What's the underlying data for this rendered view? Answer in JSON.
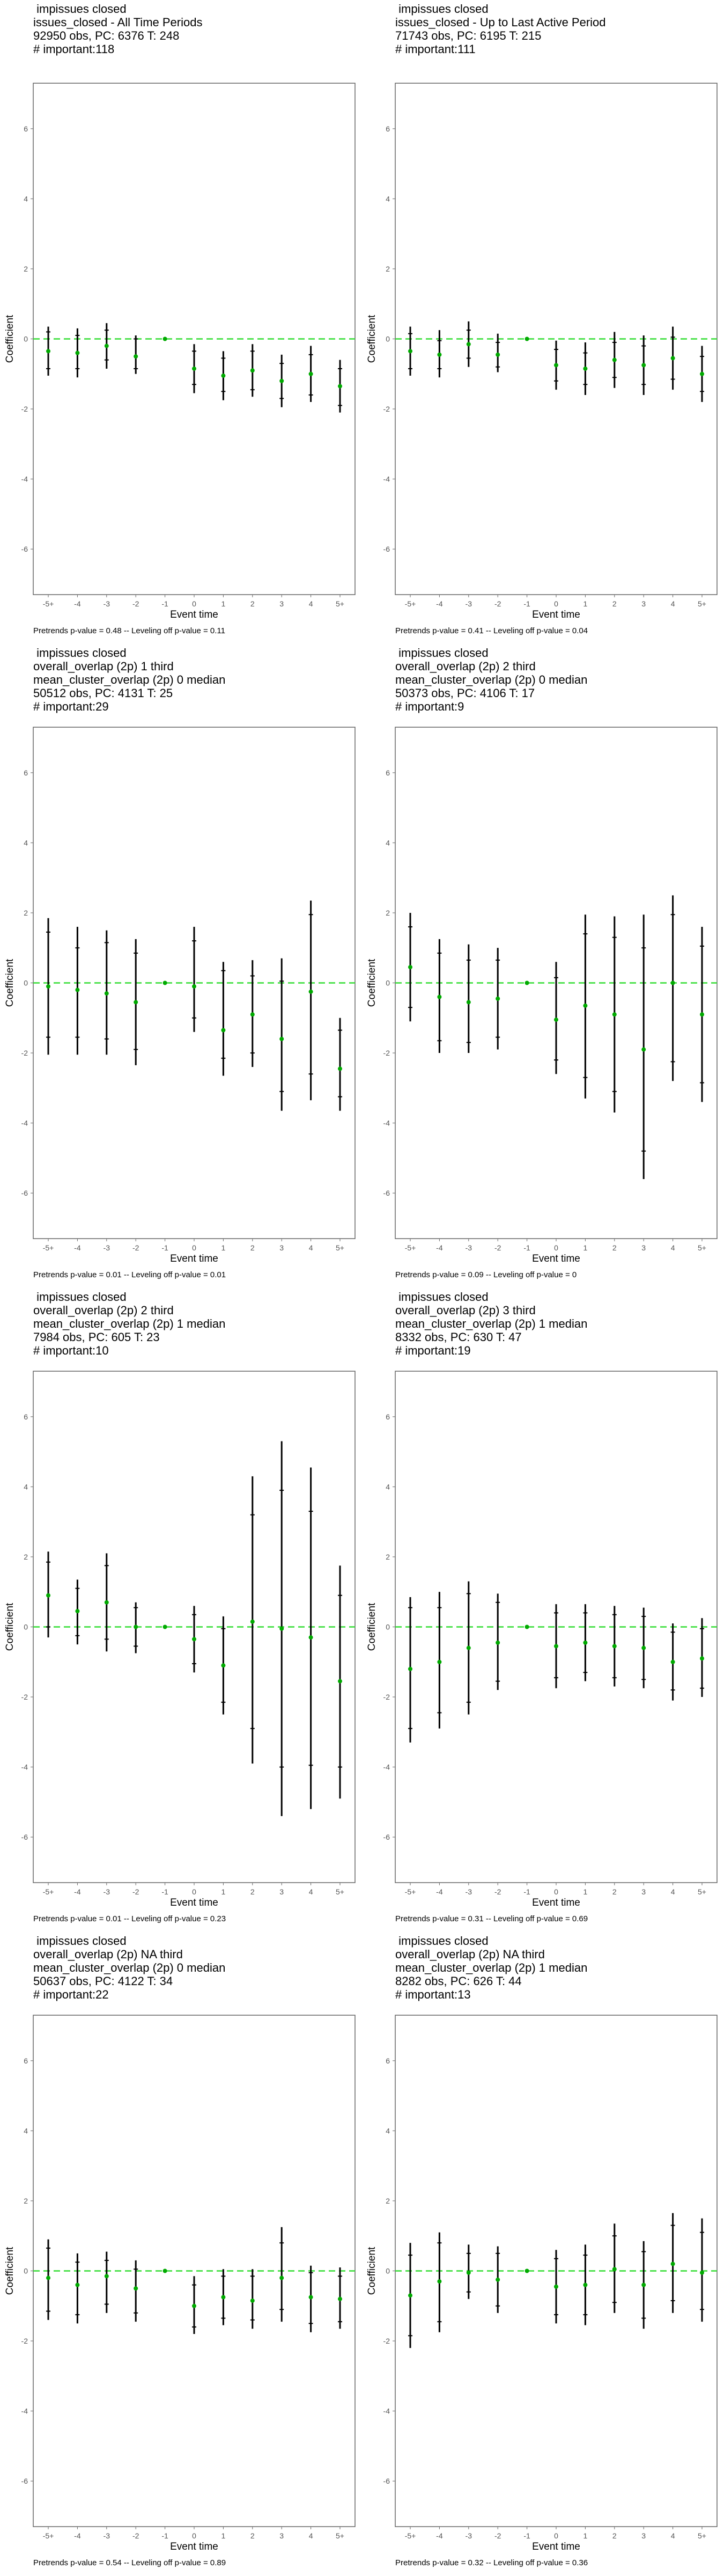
{
  "chart_data": [
    {
      "type": "scatter",
      "title_lines": [
        "impissues closed",
        "issues_closed - All Time Periods",
        "92950 obs, PC: 6376 T: 248",
        "# important:118"
      ],
      "xlabel": "Event time",
      "ylabel": "Coefficient",
      "x_ticks": [
        "-5+",
        "-4",
        "-3",
        "-2",
        "-1",
        "0",
        "1",
        "2",
        "3",
        "4",
        "5+"
      ],
      "y_ticks": [
        "-6",
        "-4",
        "-2",
        "0",
        "2",
        "4",
        "6"
      ],
      "ylim": [
        -7.3,
        7.3
      ],
      "reference_line": 0,
      "series": [
        {
          "estimate": [
            -0.35,
            -0.4,
            -0.2,
            -0.5,
            0,
            -0.85,
            -1.05,
            -0.9,
            -1.2,
            -1.0,
            -1.35
          ],
          "ci_outer_low": [
            -1.05,
            -1.1,
            -0.85,
            -1.0,
            0,
            -1.55,
            -1.75,
            -1.65,
            -1.95,
            -1.8,
            -2.1
          ],
          "ci_outer_high": [
            0.35,
            0.3,
            0.45,
            0.1,
            0,
            -0.15,
            -0.35,
            -0.15,
            -0.45,
            -0.2,
            -0.6
          ],
          "ci_inner_low": [
            -0.85,
            -0.85,
            -0.6,
            -0.85,
            0,
            -1.3,
            -1.5,
            -1.45,
            -1.7,
            -1.6,
            -1.9
          ],
          "ci_inner_high": [
            0.2,
            0.1,
            0.25,
            0.0,
            0,
            -0.35,
            -0.55,
            -0.35,
            -0.7,
            -0.45,
            -0.85
          ]
        }
      ],
      "caption": "Pretrends p-value = 0.48 -- Leveling off p-value = 0.11"
    },
    {
      "type": "scatter",
      "title_lines": [
        "impissues closed",
        "issues_closed - Up to Last Active Period",
        "71743 obs, PC: 6195 T: 215",
        "# important:111"
      ],
      "xlabel": "Event time",
      "ylabel": "Coefficient",
      "x_ticks": [
        "-5+",
        "-4",
        "-3",
        "-2",
        "-1",
        "0",
        "1",
        "2",
        "3",
        "4",
        "5+"
      ],
      "y_ticks": [
        "-6",
        "-4",
        "-2",
        "0",
        "2",
        "4",
        "6"
      ],
      "ylim": [
        -7.3,
        7.3
      ],
      "reference_line": 0,
      "series": [
        {
          "estimate": [
            -0.35,
            -0.45,
            -0.15,
            -0.45,
            0,
            -0.75,
            -0.85,
            -0.6,
            -0.75,
            -0.55,
            -1.0
          ],
          "ci_outer_low": [
            -1.05,
            -1.1,
            -0.8,
            -0.95,
            0,
            -1.45,
            -1.6,
            -1.4,
            -1.6,
            -1.45,
            -1.8
          ],
          "ci_outer_high": [
            0.35,
            0.25,
            0.5,
            0.15,
            0,
            -0.05,
            -0.1,
            0.2,
            0.1,
            0.35,
            -0.2
          ],
          "ci_inner_low": [
            -0.85,
            -0.85,
            -0.55,
            -0.8,
            0,
            -1.2,
            -1.3,
            -1.1,
            -1.3,
            -1.15,
            -1.5
          ],
          "ci_inner_high": [
            0.15,
            -0.05,
            0.25,
            -0.1,
            0,
            -0.3,
            -0.4,
            -0.1,
            -0.2,
            0.05,
            -0.5
          ]
        }
      ],
      "caption": "Pretrends p-value = 0.41 -- Leveling off p-value = 0.04"
    },
    {
      "type": "scatter",
      "title_lines": [
        "impissues closed",
        "overall_overlap (2p) 1 third",
        "mean_cluster_overlap (2p) 0 median",
        "50512 obs, PC: 4131 T: 25",
        "# important:29"
      ],
      "xlabel": "Event time",
      "ylabel": "Coefficient",
      "x_ticks": [
        "-5+",
        "-4",
        "-3",
        "-2",
        "-1",
        "0",
        "1",
        "2",
        "3",
        "4",
        "5+"
      ],
      "y_ticks": [
        "-6",
        "-4",
        "-2",
        "0",
        "2",
        "4",
        "6"
      ],
      "ylim": [
        -7.3,
        7.3
      ],
      "reference_line": 0,
      "series": [
        {
          "estimate": [
            -0.1,
            -0.2,
            -0.3,
            -0.55,
            0,
            -0.1,
            -1.35,
            -0.9,
            -1.6,
            -0.25,
            -2.45
          ],
          "ci_outer_low": [
            -2.05,
            -2.05,
            -2.05,
            -2.35,
            0,
            -1.4,
            -2.65,
            -2.4,
            -3.65,
            -3.35,
            -3.65
          ],
          "ci_outer_high": [
            1.85,
            1.6,
            1.5,
            1.25,
            0,
            1.6,
            0.6,
            0.65,
            0.7,
            2.35,
            -1.0
          ],
          "ci_inner_low": [
            -1.55,
            -1.55,
            -1.6,
            -1.9,
            0,
            -1.0,
            -2.15,
            -2.0,
            -3.1,
            -2.6,
            -3.25
          ],
          "ci_inner_high": [
            1.45,
            1.0,
            1.15,
            0.85,
            0,
            1.2,
            0.35,
            0.2,
            0.05,
            1.95,
            -1.35
          ]
        }
      ],
      "caption": "Pretrends p-value = 0.01 -- Leveling off p-value = 0.01"
    },
    {
      "type": "scatter",
      "title_lines": [
        "impissues closed",
        "overall_overlap (2p) 2 third",
        "mean_cluster_overlap (2p) 0 median",
        "50373 obs, PC: 4106 T: 17",
        "# important:9"
      ],
      "xlabel": "Event time",
      "ylabel": "Coefficient",
      "x_ticks": [
        "-5+",
        "-4",
        "-3",
        "-2",
        "-1",
        "0",
        "1",
        "2",
        "3",
        "4",
        "5+"
      ],
      "y_ticks": [
        "-6",
        "-4",
        "-2",
        "0",
        "2",
        "4",
        "6"
      ],
      "ylim": [
        -7.3,
        7.3
      ],
      "reference_line": 0,
      "series": [
        {
          "estimate": [
            0.45,
            -0.4,
            -0.55,
            -0.45,
            0,
            -1.05,
            -0.65,
            -0.9,
            -1.9,
            0.0,
            -0.9
          ],
          "ci_outer_low": [
            -1.1,
            -2.0,
            -2.0,
            -1.9,
            0,
            -2.6,
            -3.3,
            -3.7,
            -5.6,
            -2.8,
            -3.4
          ],
          "ci_outer_high": [
            2.0,
            1.25,
            1.1,
            1.0,
            0,
            0.6,
            1.95,
            1.9,
            1.95,
            2.5,
            1.6
          ],
          "ci_inner_low": [
            -0.7,
            -1.65,
            -1.7,
            -1.55,
            0,
            -2.2,
            -2.7,
            -3.1,
            -4.8,
            -2.25,
            -2.85
          ],
          "ci_inner_high": [
            1.6,
            0.85,
            0.65,
            0.65,
            0,
            0.15,
            1.4,
            1.3,
            1.0,
            1.95,
            1.05
          ]
        }
      ],
      "caption": "Pretrends p-value = 0.09 -- Leveling off p-value = 0"
    },
    {
      "type": "scatter",
      "title_lines": [
        "impissues closed",
        "overall_overlap (2p) 2 third",
        "mean_cluster_overlap (2p) 1 median",
        "7984 obs, PC: 605 T: 23",
        "# important:10"
      ],
      "xlabel": "Event time",
      "ylabel": "Coefficient",
      "x_ticks": [
        "-5+",
        "-4",
        "-3",
        "-2",
        "-1",
        "0",
        "1",
        "2",
        "3",
        "4",
        "5+"
      ],
      "y_ticks": [
        "-6",
        "-4",
        "-2",
        "0",
        "2",
        "4",
        "6"
      ],
      "ylim": [
        -7.3,
        7.3
      ],
      "reference_line": 0,
      "series": [
        {
          "estimate": [
            0.9,
            0.45,
            0.7,
            0.0,
            0,
            -0.35,
            -1.1,
            0.15,
            -0.05,
            -0.3,
            -1.55
          ],
          "ci_outer_low": [
            -0.3,
            -0.5,
            -0.7,
            -0.75,
            0,
            -1.3,
            -2.5,
            -3.9,
            -5.4,
            -5.2,
            -4.9
          ],
          "ci_outer_high": [
            2.15,
            1.35,
            2.1,
            0.7,
            0,
            0.6,
            0.3,
            4.3,
            5.3,
            4.55,
            1.75
          ],
          "ci_inner_low": [
            0.0,
            -0.25,
            -0.35,
            -0.55,
            0,
            -1.05,
            -2.15,
            -2.9,
            -4.0,
            -3.95,
            -4.0
          ],
          "ci_inner_high": [
            1.85,
            1.1,
            1.75,
            0.55,
            0,
            0.35,
            -0.05,
            3.2,
            3.9,
            3.3,
            0.9
          ]
        }
      ],
      "caption": "Pretrends p-value = 0.01 -- Leveling off p-value = 0.23"
    },
    {
      "type": "scatter",
      "title_lines": [
        "impissues closed",
        "overall_overlap (2p) 3 third",
        "mean_cluster_overlap (2p) 1 median",
        "8332 obs, PC: 630 T: 47",
        "# important:19"
      ],
      "xlabel": "Event time",
      "ylabel": "Coefficient",
      "x_ticks": [
        "-5+",
        "-4",
        "-3",
        "-2",
        "-1",
        "0",
        "1",
        "2",
        "3",
        "4",
        "5+"
      ],
      "y_ticks": [
        "-6",
        "-4",
        "-2",
        "0",
        "2",
        "4",
        "6"
      ],
      "ylim": [
        -7.3,
        7.3
      ],
      "reference_line": 0,
      "series": [
        {
          "estimate": [
            -1.2,
            -1.0,
            -0.6,
            -0.45,
            0,
            -0.55,
            -0.45,
            -0.55,
            -0.6,
            -1.0,
            -0.9
          ],
          "ci_outer_low": [
            -3.3,
            -2.9,
            -2.5,
            -1.8,
            0,
            -1.75,
            -1.55,
            -1.7,
            -1.75,
            -2.1,
            -2.0
          ],
          "ci_outer_high": [
            0.85,
            1.0,
            1.3,
            0.95,
            0,
            0.65,
            0.65,
            0.6,
            0.55,
            0.1,
            0.25
          ],
          "ci_inner_low": [
            -2.9,
            -2.45,
            -2.15,
            -1.55,
            0,
            -1.45,
            -1.3,
            -1.45,
            -1.5,
            -1.8,
            -1.75
          ],
          "ci_inner_high": [
            0.55,
            0.55,
            0.95,
            0.7,
            0,
            0.4,
            0.4,
            0.35,
            0.3,
            -0.15,
            -0.05
          ]
        }
      ],
      "caption": "Pretrends p-value = 0.31 -- Leveling off p-value = 0.69"
    },
    {
      "type": "scatter",
      "title_lines": [
        "impissues closed",
        "overall_overlap (2p) NA third",
        "mean_cluster_overlap (2p) 0 median",
        "50637 obs, PC: 4122 T: 34",
        "# important:22"
      ],
      "xlabel": "Event time",
      "ylabel": "Coefficient",
      "x_ticks": [
        "-5+",
        "-4",
        "-3",
        "-2",
        "-1",
        "0",
        "1",
        "2",
        "3",
        "4",
        "5+"
      ],
      "y_ticks": [
        "-6",
        "-4",
        "-2",
        "0",
        "2",
        "4",
        "6"
      ],
      "ylim": [
        -7.3,
        7.3
      ],
      "reference_line": 0,
      "series": [
        {
          "estimate": [
            -0.2,
            -0.4,
            -0.15,
            -0.5,
            0,
            -1.0,
            -0.75,
            -0.85,
            -0.2,
            -0.75,
            -0.8
          ],
          "ci_outer_low": [
            -1.4,
            -1.5,
            -1.2,
            -1.45,
            0,
            -1.8,
            -1.55,
            -1.65,
            -1.45,
            -1.75,
            -1.65
          ],
          "ci_outer_high": [
            0.9,
            0.5,
            0.55,
            0.3,
            0,
            -0.15,
            0.05,
            0.05,
            1.25,
            0.15,
            0.1
          ],
          "ci_inner_low": [
            -1.15,
            -1.25,
            -0.95,
            -1.2,
            0,
            -1.6,
            -1.35,
            -1.4,
            -1.1,
            -1.5,
            -1.45
          ],
          "ci_inner_high": [
            0.65,
            0.25,
            0.3,
            0.05,
            0,
            -0.4,
            -0.15,
            -0.15,
            0.8,
            -0.05,
            -0.15
          ]
        }
      ],
      "caption": "Pretrends p-value = 0.54 -- Leveling off p-value = 0.89"
    },
    {
      "type": "scatter",
      "title_lines": [
        "impissues closed",
        "overall_overlap (2p) NA third",
        "mean_cluster_overlap (2p) 1 median",
        "8282 obs, PC: 626 T: 44",
        "# important:13"
      ],
      "xlabel": "Event time",
      "ylabel": "Coefficient",
      "x_ticks": [
        "-5+",
        "-4",
        "-3",
        "-2",
        "-1",
        "0",
        "1",
        "2",
        "3",
        "4",
        "5+"
      ],
      "y_ticks": [
        "-6",
        "-4",
        "-2",
        "0",
        "2",
        "4",
        "6"
      ],
      "ylim": [
        -7.3,
        7.3
      ],
      "reference_line": 0,
      "series": [
        {
          "estimate": [
            -0.7,
            -0.3,
            -0.05,
            -0.25,
            0,
            -0.45,
            -0.4,
            0.05,
            -0.4,
            0.2,
            -0.05
          ],
          "ci_outer_low": [
            -2.2,
            -1.75,
            -0.8,
            -1.2,
            0,
            -1.5,
            -1.55,
            -1.2,
            -1.65,
            -1.2,
            -1.45
          ],
          "ci_outer_high": [
            0.8,
            1.1,
            0.75,
            0.7,
            0,
            0.6,
            0.75,
            1.35,
            0.85,
            1.65,
            1.5
          ],
          "ci_inner_low": [
            -1.85,
            -1.45,
            -0.6,
            -1.0,
            0,
            -1.25,
            -1.25,
            -0.9,
            -1.35,
            -0.85,
            -1.1
          ],
          "ci_inner_high": [
            0.45,
            0.8,
            0.5,
            0.5,
            0,
            0.35,
            0.45,
            1.0,
            0.55,
            1.3,
            1.1
          ]
        }
      ],
      "caption": "Pretrends p-value = 0.32 -- Leveling off p-value = 0.36"
    }
  ],
  "colors": {
    "point": "#00aa00",
    "reference_line": "#33dd33",
    "interval": "#000000",
    "frame": "#666666",
    "tick_label": "#555555"
  }
}
